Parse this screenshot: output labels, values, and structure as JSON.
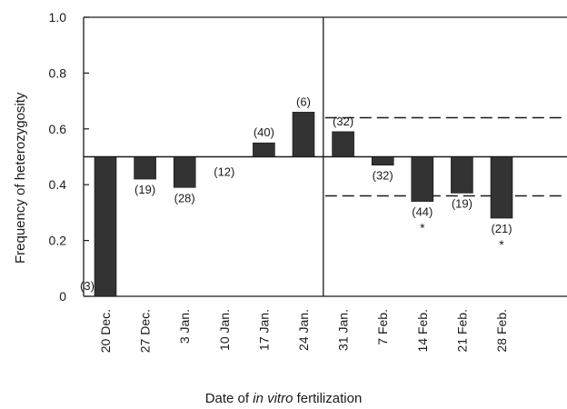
{
  "chart_data": {
    "type": "bar",
    "title": "",
    "ylabel": "Frequency of heterozygosity",
    "xlabel": {
      "prefix": "Date of ",
      "italic": "in vitro",
      "suffix": " fertilization"
    },
    "ylim": [
      0,
      1.0
    ],
    "yticks": [
      "0",
      "0.2",
      "0.4",
      "0.6",
      "0.8",
      "1.0"
    ],
    "baseline": 0.5,
    "categories": [
      "20 Dec.",
      "27 Dec.",
      "3 Jan.",
      "10 Jan.",
      "17 Jan.",
      "24 Jan.",
      "31 Jan.",
      "7 Feb.",
      "14 Feb.",
      "21 Feb.",
      "28 Feb."
    ],
    "values": [
      0.0,
      0.42,
      0.39,
      0.5,
      0.55,
      0.66,
      0.59,
      0.47,
      0.34,
      0.37,
      0.28
    ],
    "sample_sizes": [
      "(3)",
      "(19)",
      "(28)",
      "(12)",
      "(40)",
      "(6)",
      "(32)",
      "(32)",
      "(44)",
      "(19)",
      "(21)"
    ],
    "significant": [
      false,
      false,
      false,
      false,
      false,
      false,
      false,
      false,
      true,
      false,
      true
    ],
    "significance_marker": "*",
    "reference_lines": {
      "upper": 0.64,
      "lower": 0.36,
      "from_category": "31 Jan.",
      "style": "dashed"
    },
    "divider_after_category": "24 Jan.",
    "grid": false,
    "bar_color": "#333333",
    "axis_color": "#1a1a1a"
  }
}
